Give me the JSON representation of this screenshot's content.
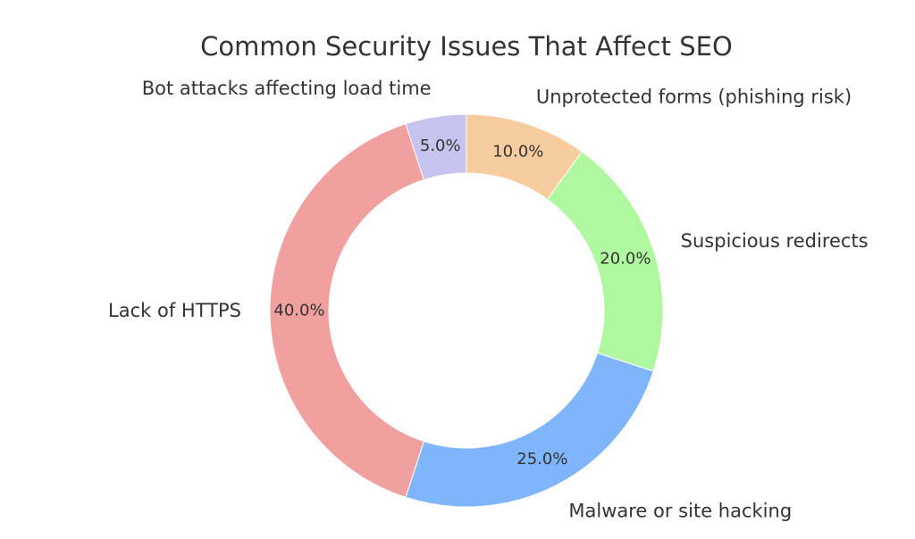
{
  "chart_data": {
    "type": "pie",
    "donut": true,
    "title": "Common Security Issues That Affect SEO",
    "start_angle_deg": 90,
    "direction": "clockwise",
    "slices": [
      {
        "label": "Unprotected forms (phishing risk)",
        "value": 10.0,
        "pct_label": "10.0%",
        "color": "#f7cd9f"
      },
      {
        "label": "Suspicious redirects",
        "value": 20.0,
        "pct_label": "20.0%",
        "color": "#b0f8a0"
      },
      {
        "label": "Malware or site hacking",
        "value": 25.0,
        "pct_label": "25.0%",
        "color": "#7eb5fb"
      },
      {
        "label": "Lack of HTTPS",
        "value": 40.0,
        "pct_label": "40.0%",
        "color": "#f0a09f"
      },
      {
        "label": "Bot attacks affecting load time",
        "value": 5.0,
        "pct_label": "5.0%",
        "color": "#c6c4ee"
      }
    ]
  }
}
